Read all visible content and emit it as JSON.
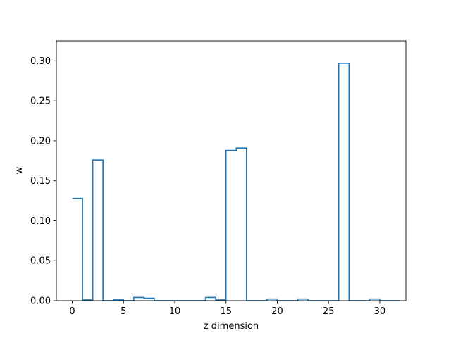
{
  "chart_data": {
    "type": "bar",
    "style": "step-outline",
    "xlabel": "z dimension",
    "ylabel": "w",
    "xlim": [
      -1.55,
      32.55
    ],
    "ylim": [
      0,
      0.325
    ],
    "xticks": [
      0,
      5,
      10,
      15,
      20,
      25,
      30
    ],
    "yticks": [
      0.0,
      0.05,
      0.1,
      0.15,
      0.2,
      0.25,
      0.3
    ],
    "ytick_labels": [
      "0.00",
      "0.05",
      "0.10",
      "0.15",
      "0.20",
      "0.25",
      "0.30"
    ],
    "grid": false,
    "line_color": "#1f77b4",
    "x": [
      0,
      1,
      2,
      3,
      4,
      5,
      6,
      7,
      8,
      9,
      10,
      11,
      12,
      13,
      14,
      15,
      16,
      17,
      18,
      19,
      20,
      21,
      22,
      23,
      24,
      25,
      26,
      27,
      28,
      29,
      30,
      31
    ],
    "values": [
      0.128,
      0.001,
      0.176,
      0.0,
      0.001,
      0.0,
      0.004,
      0.003,
      0.0,
      0.0,
      0.0,
      0.0,
      0.0,
      0.004,
      0.001,
      0.188,
      0.191,
      0.0,
      0.0,
      0.002,
      0.0,
      0.0,
      0.002,
      0.0,
      0.0,
      0.0,
      0.297,
      0.0,
      0.0,
      0.002,
      0.0,
      0.0
    ]
  }
}
